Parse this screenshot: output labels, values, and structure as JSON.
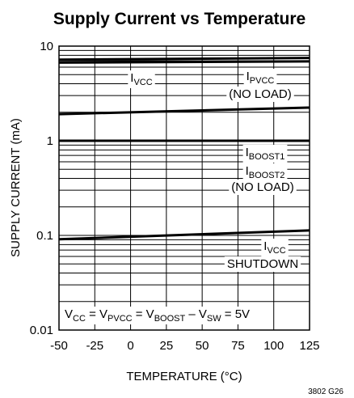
{
  "chart_data": {
    "type": "line",
    "title": "Supply Current vs Temperature",
    "xlabel": "TEMPERATURE (°C)",
    "ylabel": "SUPPLY CURRENT (mA)",
    "note": "3802 G26",
    "xlim": [
      -50,
      125
    ],
    "xticks": [
      -50,
      -25,
      0,
      25,
      50,
      75,
      100,
      125
    ],
    "ylim": [
      0.01,
      10
    ],
    "yticks": [
      0.01,
      0.1,
      1,
      10
    ],
    "yminorticks": [
      0.02,
      0.03,
      0.04,
      0.05,
      0.06,
      0.07,
      0.08,
      0.09,
      0.2,
      0.3,
      0.4,
      0.5,
      0.6,
      0.7,
      0.8,
      0.9,
      2,
      3,
      4,
      5,
      6,
      7,
      8,
      9
    ],
    "log_y": true,
    "grid": true,
    "x": [
      -50,
      125
    ],
    "series": [
      {
        "color": "#000000",
        "values": [
          7.2,
          7.5
        ]
      },
      {
        "color": "#000000",
        "values": [
          6.7,
          6.9
        ]
      },
      {
        "color": "#000000",
        "values": [
          1.91,
          2.24
        ]
      },
      {
        "color": "#000000",
        "values": [
          1.0,
          1.0
        ]
      },
      {
        "color": "#000000",
        "values": [
          0.091,
          0.113
        ]
      }
    ],
    "annotations": [
      [
        [
          {
            "text": "I"
          },
          {
            "sub": "VCC"
          }
        ]
      ],
      [
        [
          {
            "text": "I"
          },
          {
            "sub": "PVCC"
          }
        ],
        [
          {
            "text": "(NO LOAD)"
          }
        ]
      ],
      [
        [
          {
            "text": "I"
          },
          {
            "sub": "BOOST1"
          }
        ],
        [
          {
            "text": "I"
          },
          {
            "sub": "BOOST2"
          }
        ],
        [
          {
            "text": "(NO LOAD)"
          }
        ]
      ],
      [
        [
          {
            "text": "I"
          },
          {
            "sub": "VCC"
          }
        ],
        [
          {
            "text": "SHUTDOWN"
          }
        ]
      ],
      [
        [
          {
            "text": "V"
          },
          {
            "sub": "CC"
          },
          {
            "text": " = V"
          },
          {
            "sub": "PVCC"
          },
          {
            "text": " = V"
          },
          {
            "sub": "BOOST"
          },
          {
            "text": " – V"
          },
          {
            "sub": "SW"
          },
          {
            "text": " = 5V"
          }
        ]
      ]
    ]
  }
}
